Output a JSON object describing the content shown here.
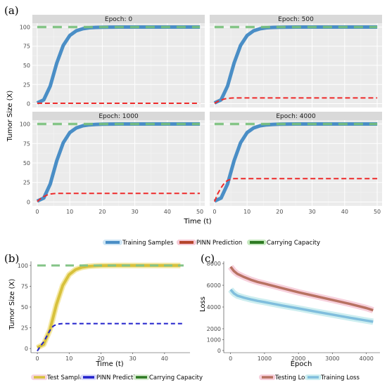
{
  "colors": {
    "training": "#4a8ec6",
    "pinn_a": "#ee2a2a",
    "capacity_a": "#78c07a",
    "test": "#d7c13c",
    "pinn_b": "#2222cc",
    "capacity_b": "#84c487",
    "testing_loss": "#b87262",
    "training_loss": "#80bedd",
    "panel_bg": "#ebebeb",
    "strip_bg": "#d9d9d9",
    "grid": "#ffffff"
  },
  "chart_data": [
    {
      "id": "a",
      "panel_label": "(a)",
      "type": "line",
      "xlabel": "Time (t)",
      "ylabel": "Tumor Size (X)",
      "xlim": [
        -1.5,
        51.5
      ],
      "ylim": [
        -5,
        105
      ],
      "x_ticks": [
        0,
        10,
        20,
        30,
        40,
        50
      ],
      "y_ticks": [
        0,
        25,
        50,
        75,
        100
      ],
      "grid": true,
      "legend_position": "bottom",
      "legend": [
        "Training Samples",
        "PINN Prediction",
        "Carrying Capacity"
      ],
      "facets": [
        {
          "title": "Epoch: 0",
          "pinn_plateau": 0.5
        },
        {
          "title": "Epoch: 500",
          "pinn_plateau": 7.5
        },
        {
          "title": "Epoch: 1000",
          "pinn_plateau": 11
        },
        {
          "title": "Epoch: 4000",
          "pinn_plateau": 30
        }
      ],
      "series": [
        {
          "name": "Training Samples",
          "style": "solid",
          "x": [
            0,
            2,
            4,
            6,
            8,
            10,
            12,
            14,
            16,
            18,
            20,
            25,
            30,
            35,
            40,
            45,
            50
          ],
          "y": [
            1,
            5,
            23,
            53,
            76,
            89,
            95,
            97.8,
            99,
            99.5,
            99.8,
            100,
            100,
            100,
            100,
            100,
            100
          ]
        },
        {
          "name": "Carrying Capacity",
          "style": "dashed",
          "x": [
            0,
            50
          ],
          "y": [
            100,
            100
          ]
        }
      ]
    },
    {
      "id": "b",
      "panel_label": "(b)",
      "type": "line",
      "xlabel": "Time (t)",
      "ylabel": "Tumor Size (X)",
      "xlim": [
        -2,
        48
      ],
      "ylim": [
        -5,
        105
      ],
      "x_ticks": [
        0,
        10,
        20,
        30,
        40
      ],
      "y_ticks": [
        0,
        25,
        50,
        75,
        100
      ],
      "grid": false,
      "legend_position": "bottom",
      "series": [
        {
          "name": "Test Samples",
          "style": "solid",
          "x": [
            0,
            2,
            4,
            6,
            8,
            10,
            12,
            14,
            16,
            18,
            20,
            25,
            30,
            35,
            40,
            45
          ],
          "y": [
            1,
            5,
            23,
            53,
            76,
            89,
            95,
            97.8,
            99,
            99.5,
            99.8,
            100,
            100,
            100,
            100,
            100
          ]
        },
        {
          "name": "PINN Prediction",
          "style": "dashed",
          "x": [
            0,
            1,
            2,
            3,
            4,
            5,
            6,
            7,
            8,
            10,
            15,
            20,
            30,
            40,
            46
          ],
          "y": [
            -3,
            3,
            8,
            15,
            22,
            27,
            29,
            29.7,
            30,
            30,
            30,
            30,
            30,
            30,
            30
          ]
        },
        {
          "name": "Carrying Capacity",
          "style": "dashed",
          "x": [
            0,
            46
          ],
          "y": [
            100,
            100
          ]
        }
      ]
    },
    {
      "id": "c",
      "panel_label": "(c)",
      "type": "line",
      "xlabel": "Epoch",
      "ylabel": "Loss",
      "xlim": [
        -200,
        4400
      ],
      "ylim": [
        -200,
        8200
      ],
      "x_ticks": [
        0,
        1000,
        2000,
        3000,
        4000
      ],
      "y_ticks": [
        0,
        1000,
        2000,
        4000,
        6000,
        8000
      ],
      "grid": false,
      "legend_position": "bottom",
      "series": [
        {
          "name": "Testing Loss",
          "x": [
            0,
            100,
            200,
            400,
            600,
            800,
            1000,
            1500,
            2000,
            2500,
            3000,
            3500,
            4000,
            4200
          ],
          "y": [
            7700,
            7300,
            7050,
            6750,
            6500,
            6300,
            6150,
            5750,
            5350,
            5000,
            4650,
            4300,
            3900,
            3700
          ]
        },
        {
          "name": "Training Loss",
          "x": [
            0,
            100,
            200,
            400,
            600,
            800,
            1000,
            1500,
            2000,
            2500,
            3000,
            3500,
            4000,
            4200
          ],
          "y": [
            5600,
            5250,
            5050,
            4850,
            4700,
            4560,
            4450,
            4150,
            3870,
            3580,
            3300,
            3020,
            2750,
            2650
          ]
        }
      ]
    }
  ]
}
